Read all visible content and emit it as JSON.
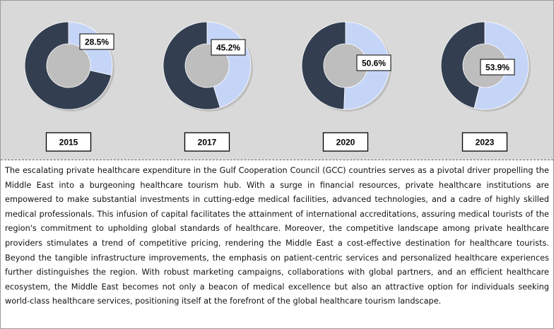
{
  "chart_data": [
    {
      "type": "pie",
      "category": "2015",
      "value": 28.5,
      "label": "28.5%"
    },
    {
      "type": "pie",
      "category": "2017",
      "value": 45.2,
      "label": "45.2%"
    },
    {
      "type": "pie",
      "category": "2020",
      "value": 50.6,
      "label": "50.6%"
    },
    {
      "type": "pie",
      "category": "2023",
      "value": 53.9,
      "label": "53.9%"
    }
  ],
  "colors": {
    "highlight": "#c5d5f7",
    "remainder": "#333f50",
    "panel_background": "#d9d9d9"
  },
  "paragraph": "The escalating private healthcare expenditure in the Gulf Cooperation Council (GCC) countries serves as a pivotal driver propelling the Middle East into a burgeoning healthcare tourism hub. With a surge in financial resources, private healthcare institutions are empowered to make substantial investments in cutting-edge medical facilities, advanced technologies, and a cadre of highly skilled medical professionals. This infusion of capital facilitates the attainment of international accreditations, assuring medical tourists of the region's commitment to upholding global standards of healthcare. Moreover, the competitive landscape among private healthcare providers stimulates a trend of competitive pricing, rendering the Middle East a cost-effective destination for healthcare tourists. Beyond the tangible infrastructure improvements, the emphasis on patient-centric services and personalized healthcare experiences further distinguishes the region. With robust marketing campaigns, collaborations with global partners, and an efficient healthcare ecosystem, the Middle East becomes not only a beacon of medical excellence but also an attractive option for individuals seeking world-class healthcare services, positioning itself at the forefront of the global healthcare tourism landscape."
}
